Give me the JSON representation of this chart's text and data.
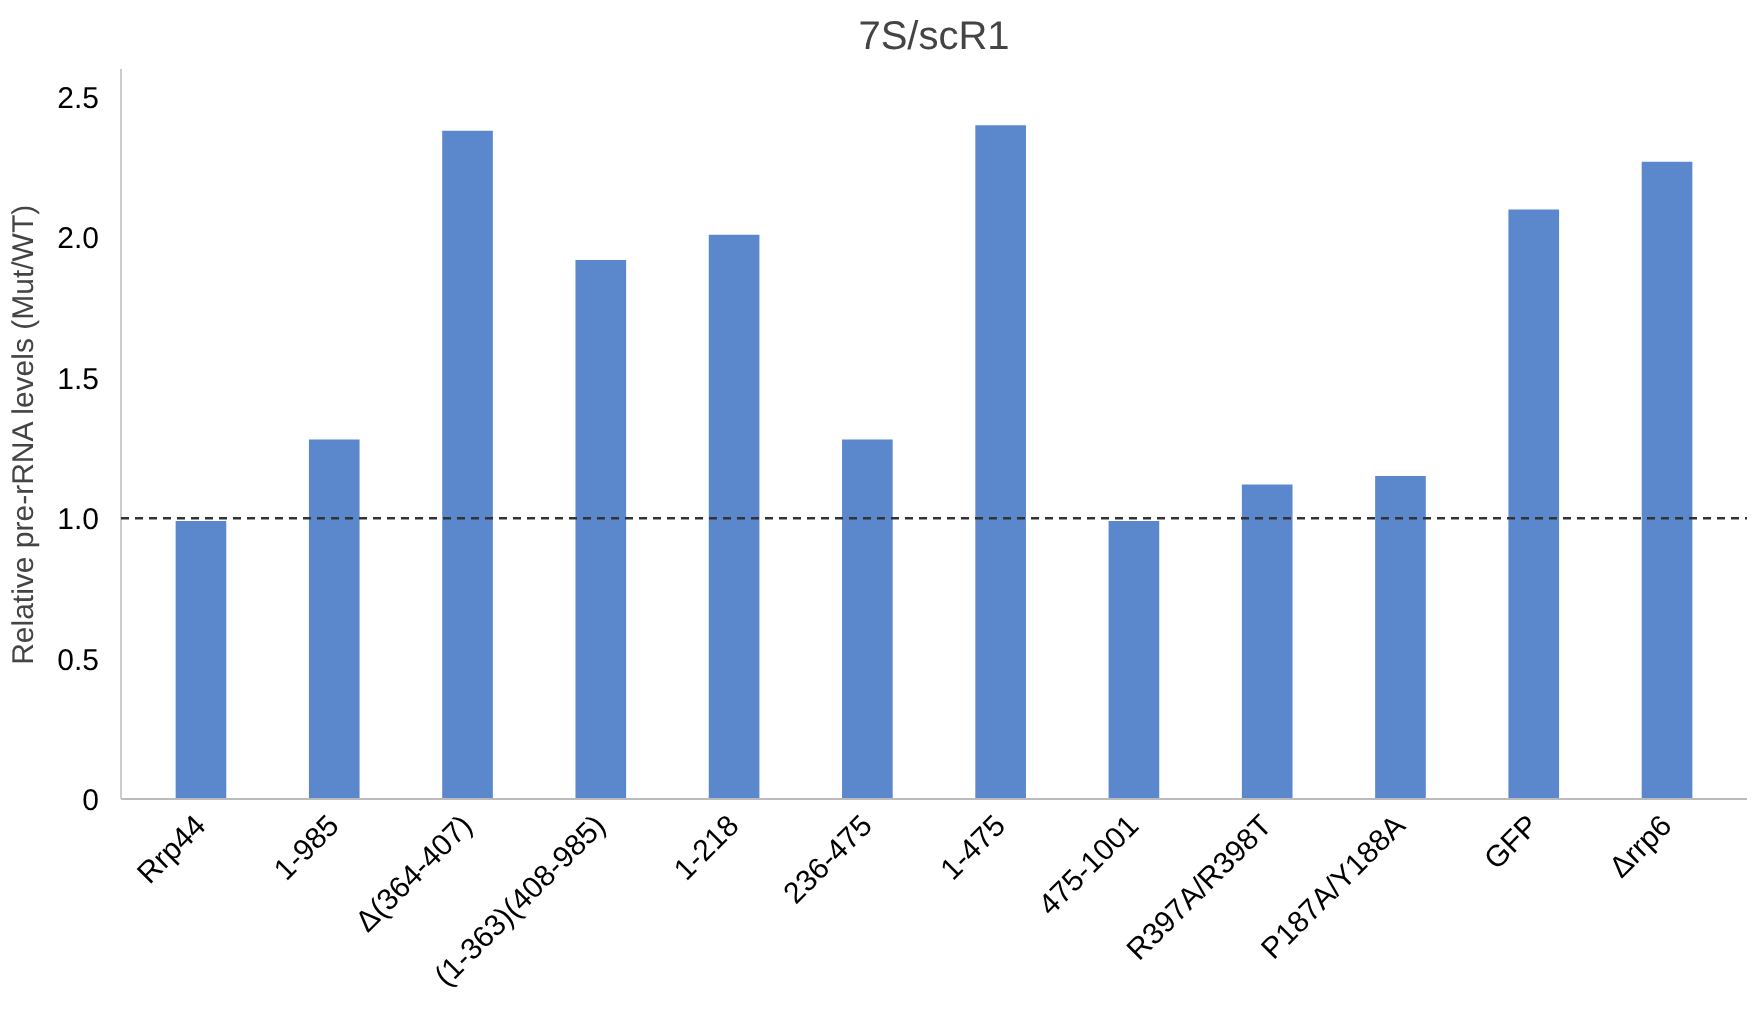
{
  "chart_data": {
    "type": "bar",
    "title": "7S/scR1",
    "ylabel": "Relative pre-rRNA levels (Mut/WT)",
    "categories": [
      "Rrp44",
      "1-985",
      "Δ(364-407)",
      "(1-363)(408-985)",
      "1-218",
      "236-475",
      "1-475",
      "475-1001",
      "R397A/R398T",
      "P187A/Y188A",
      "GFP",
      "Δrrp6"
    ],
    "values": [
      0.99,
      1.28,
      2.38,
      1.92,
      2.01,
      1.28,
      2.4,
      0.99,
      1.12,
      1.15,
      2.1,
      2.27
    ],
    "color": "#5b87cd",
    "ylim": [
      0,
      2.6
    ],
    "yticks": [
      {
        "value": 0,
        "label": "0"
      },
      {
        "value": 0.5,
        "label": "0.5"
      },
      {
        "value": 1,
        "label": "1.0"
      },
      {
        "value": 1.5,
        "label": "1.5"
      },
      {
        "value": 2,
        "label": "2.0"
      },
      {
        "value": 2.5,
        "label": "2.5"
      }
    ],
    "grid": false,
    "ref_lines": [
      {
        "axis": "y",
        "value": 1,
        "color": "#333333",
        "line_style": "dashed"
      }
    ]
  }
}
